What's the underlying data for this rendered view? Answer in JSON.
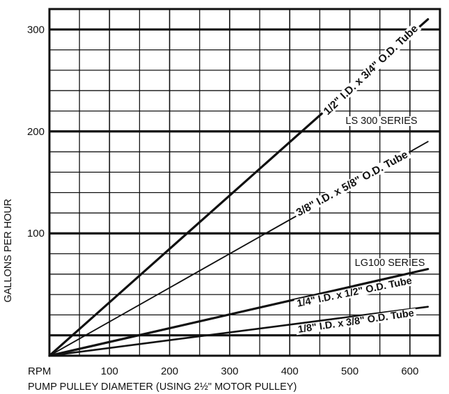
{
  "chart_data": {
    "type": "line",
    "xlabel_left": "RPM",
    "xlabel": "PUMP PULLEY DIAMETER (USING 2½\" MOTOR PULLEY)",
    "ylabel": "GALLONS PER HOUR",
    "xlim": [
      0,
      650
    ],
    "ylim": [
      -20,
      320
    ],
    "x_ticks": [
      "100",
      "200",
      "300",
      "400",
      "500",
      "600"
    ],
    "y_ticks": [
      "100",
      "200",
      "300"
    ],
    "x_tick_values": [
      100,
      200,
      300,
      400,
      500,
      600
    ],
    "y_tick_values": [
      100,
      200,
      300
    ],
    "grid": true,
    "bands": [
      {
        "label": "LS 300 SERIES",
        "y": 220
      },
      {
        "label": "LG100 SERIES",
        "y": 80
      }
    ],
    "series": [
      {
        "name": "1/2\" I.D. x 3/4\" O.D. Tube",
        "x": [
          0,
          630
        ],
        "y": [
          -20,
          310
        ]
      },
      {
        "name": "3/8\" I.D. x 5/8\" O.D. Tube",
        "x": [
          0,
          630
        ],
        "y": [
          -20,
          190
        ]
      },
      {
        "name": "1/4\" I.D. x 1/2\" O.D. Tube",
        "x": [
          0,
          630
        ],
        "y": [
          -20,
          65
        ]
      },
      {
        "name": "1/8\" I.D. x 3/8\" O.D. Tube",
        "x": [
          0,
          630
        ],
        "y": [
          -20,
          28
        ]
      }
    ]
  }
}
